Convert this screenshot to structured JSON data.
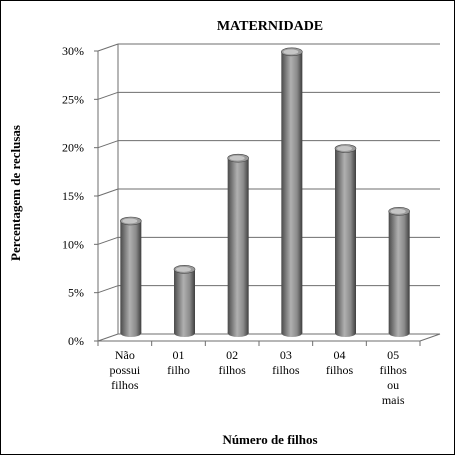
{
  "colors": {
    "bar_dark": "#4a4a4a",
    "bar_mid": "#9a9a9a",
    "bar_light": "#d8d8d8",
    "grid": "#6e6e6e",
    "text": "#000000"
  },
  "chart_data": {
    "type": "bar",
    "title": "MATERNIDADE",
    "xlabel": "Número de filhos",
    "ylabel": "Percentagem de reclusas",
    "ylim": [
      0,
      30
    ],
    "y_ticks": [
      0,
      5,
      10,
      15,
      20,
      25,
      30
    ],
    "y_tick_labels": [
      "0%",
      "5%",
      "10%",
      "15%",
      "20%",
      "25%",
      "30%"
    ],
    "categories": [
      [
        "Não",
        "possui",
        "filhos"
      ],
      [
        "01",
        "filho"
      ],
      [
        "02",
        "filhos"
      ],
      [
        "03",
        "filhos"
      ],
      [
        "04",
        "filhos"
      ],
      [
        "05",
        "filhos",
        "ou",
        "mais"
      ]
    ],
    "values": [
      12,
      7,
      18.5,
      29.5,
      19.5,
      13
    ],
    "grid": true,
    "style": "3d-cylinder"
  }
}
